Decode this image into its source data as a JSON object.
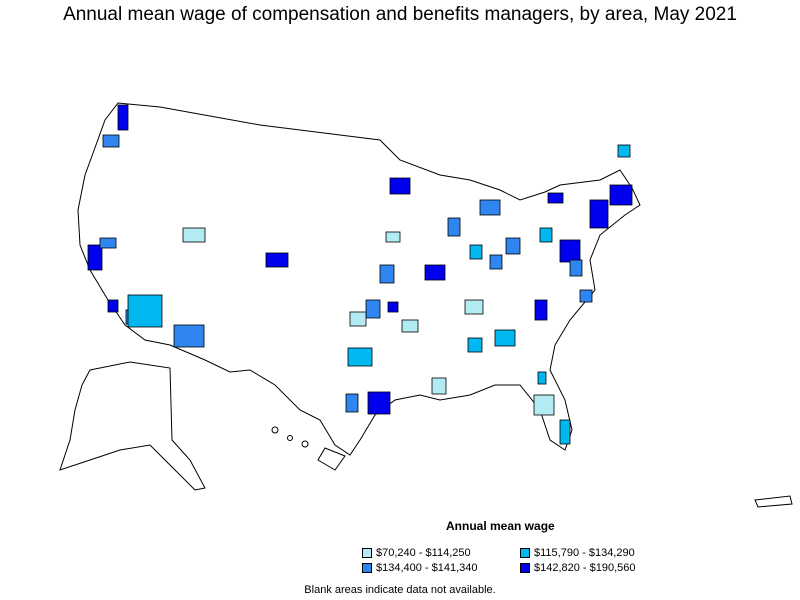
{
  "title": "Annual mean wage of compensation and benefits managers, by area, May 2021",
  "legend": {
    "title": "Annual mean wage",
    "items": [
      {
        "label": "$70,240 - $114,250",
        "color": "#b2ebf2"
      },
      {
        "label": "$134,400 - $141,340",
        "color": "#2f86f0"
      },
      {
        "label": "$115,790 - $134,290",
        "color": "#00b7f0"
      },
      {
        "label": "$142,820 - $190,560",
        "color": "#0000ee"
      }
    ]
  },
  "note": "Blank areas indicate data not available."
}
